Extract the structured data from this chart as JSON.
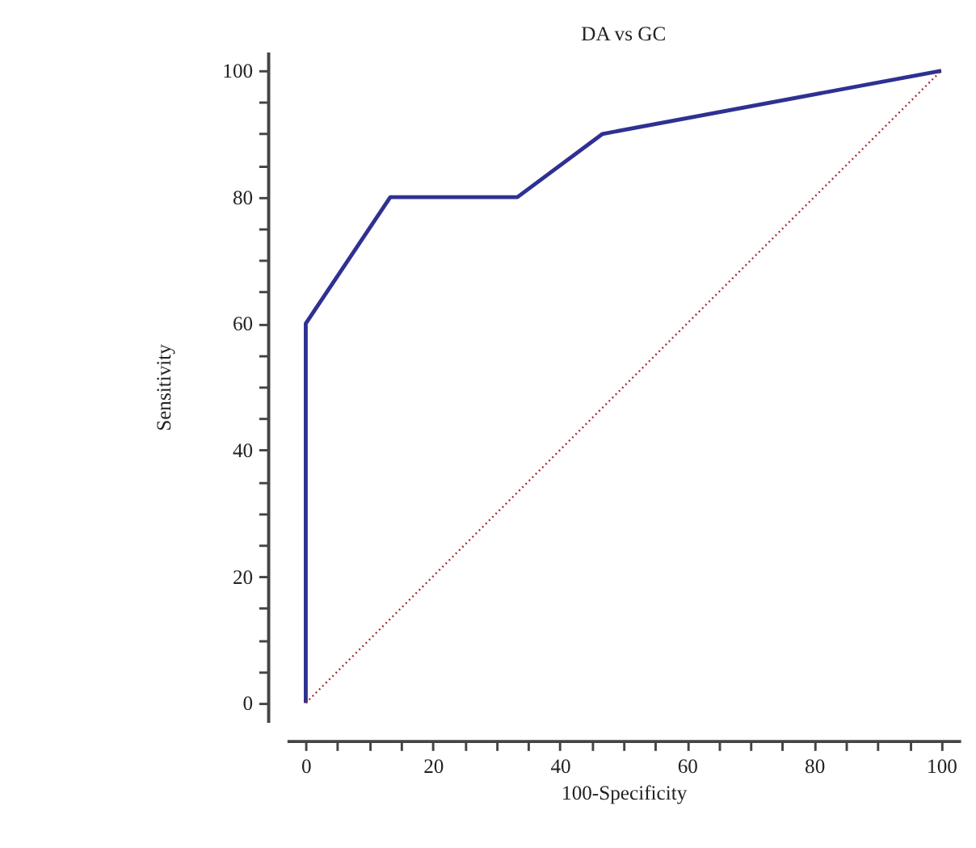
{
  "chart_data": {
    "type": "line",
    "title": "DA vs GC",
    "xlabel": "100-Specificity",
    "ylabel": "Sensitivity",
    "xlim": [
      -3,
      103
    ],
    "ylim": [
      -3,
      103
    ],
    "xticks": [
      0,
      {
        "value": 5,
        "label": null
      },
      {
        "value": 10,
        "label": null
      },
      {
        "value": 15,
        "label": null
      },
      20,
      {
        "value": 25,
        "label": null
      },
      {
        "value": 30,
        "label": null
      },
      {
        "value": 35,
        "label": null
      },
      40,
      {
        "value": 45,
        "label": null
      },
      {
        "value": 50,
        "label": null
      },
      {
        "value": 55,
        "label": null
      },
      60,
      {
        "value": 65,
        "label": null
      },
      {
        "value": 70,
        "label": null
      },
      {
        "value": 75,
        "label": null
      },
      80,
      {
        "value": 85,
        "label": null
      },
      {
        "value": 90,
        "label": null
      },
      {
        "value": 95,
        "label": null
      },
      100
    ],
    "yticks": [
      0,
      {
        "value": 5,
        "label": null
      },
      {
        "value": 10,
        "label": null
      },
      {
        "value": 15,
        "label": null
      },
      20,
      {
        "value": 25,
        "label": null
      },
      {
        "value": 30,
        "label": null
      },
      {
        "value": 35,
        "label": null
      },
      40,
      {
        "value": 45,
        "label": null
      },
      {
        "value": 50,
        "label": null
      },
      {
        "value": 55,
        "label": null
      },
      60,
      {
        "value": 65,
        "label": null
      },
      {
        "value": 70,
        "label": null
      },
      {
        "value": 75,
        "label": null
      },
      80,
      {
        "value": 85,
        "label": null
      },
      {
        "value": 90,
        "label": null
      },
      {
        "value": 95,
        "label": null
      },
      100
    ],
    "grid": false,
    "legend": false,
    "marker": "none",
    "series": [
      {
        "color": "#2e3192",
        "line_style": "solid",
        "x": [
          0,
          0,
          13.3,
          33.3,
          46.7,
          100
        ],
        "values": [
          0,
          60,
          80,
          80,
          90,
          100
        ]
      },
      {
        "color": "#a52a2a",
        "line_style": "dotted",
        "x": [
          0,
          100
        ],
        "values": [
          0,
          100
        ]
      }
    ]
  }
}
